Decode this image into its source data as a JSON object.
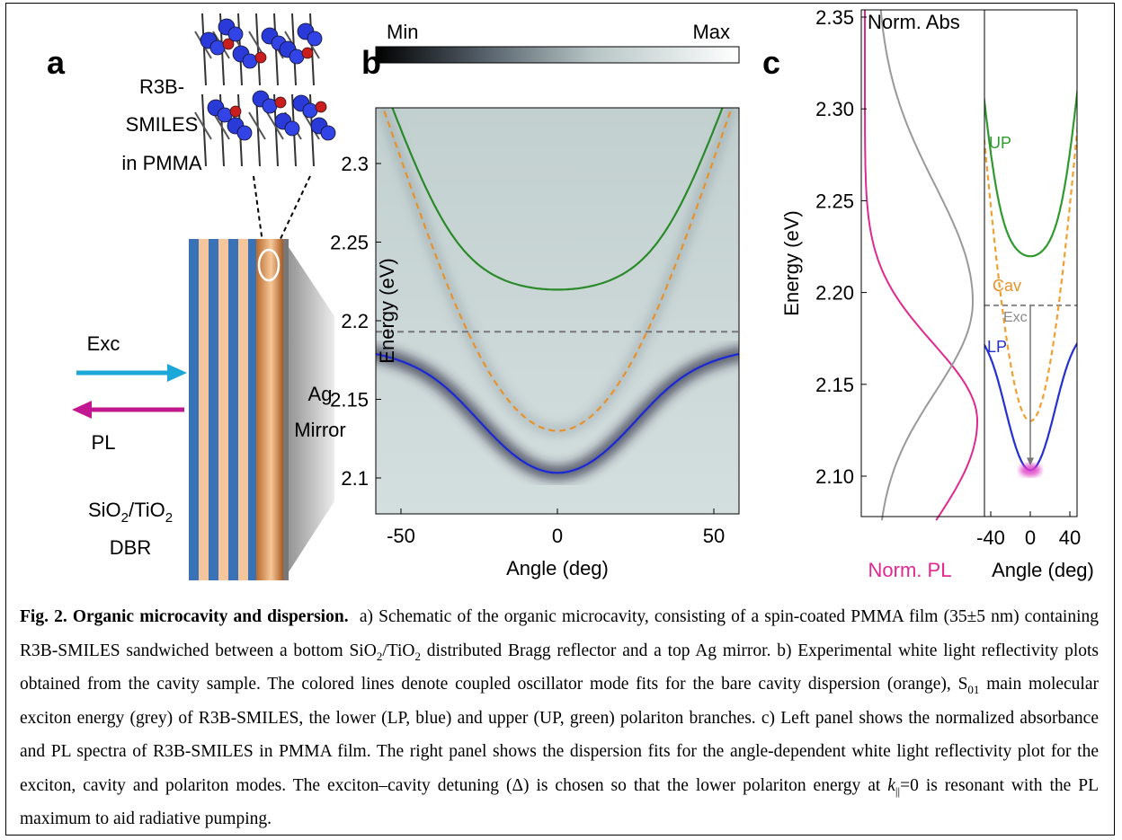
{
  "panel_a": {
    "label": "a",
    "sample": [
      "R3B-",
      "SMILES",
      "in PMMA"
    ],
    "excitation": "Exc",
    "emission": "PL",
    "dbr_material": [
      "SiO",
      "2",
      "/TiO",
      "2"
    ],
    "dbr": "DBR",
    "mirror": [
      "Ag",
      "Mirror"
    ]
  },
  "panel_b": {
    "label": "b",
    "colorbar": [
      "Min",
      "Max"
    ],
    "y_axis_title": "Energy (eV)",
    "x_axis_title": "Angle (deg)",
    "yticks": [
      "2.1",
      "2.15",
      "2.2",
      "2.25",
      "2.3"
    ],
    "xticks": [
      "-50",
      "0",
      "50"
    ]
  },
  "panel_c": {
    "label": "c",
    "absorbance_title": "Norm. Abs",
    "pl_title": "Norm. PL",
    "y_axis_title": "Energy (eV)",
    "x_axis_title": "Angle (deg)",
    "yticks": [
      "2.10",
      "2.15",
      "2.20",
      "2.25",
      "2.30",
      "2.35"
    ],
    "xticks": [
      "-40",
      "0",
      "40"
    ],
    "mode_labels": {
      "up": "UP",
      "cav": "Cav",
      "exc": "Exc",
      "lp": "LP"
    }
  },
  "caption": {
    "title": "Fig. 2. Organic microcavity and dispersion.",
    "body": [
      "a) Schematic of the organic microcavity, consisting of a spin-coated PMMA film (35±5 nm) containing R3B-SMILES sandwiched between a bottom SiO",
      "2",
      "/TiO",
      "2",
      " distributed Bragg reflector and a top Ag mirror. b) Experimental white light reflectivity plots obtained from the cavity sample. The colored lines denote coupled oscillator mode fits for the bare cavity dispersion (orange), S",
      "01",
      " main molecular exciton energy (grey) of R3B-SMILES, the lower (LP, blue) and upper (UP, green) polariton branches. c) Left panel shows the normalized absorbance and PL spectra of R3B-SMILES in PMMA film. The right panel shows the dispersion fits for the angle-dependent white light reflectivity plot for the exciton, cavity and polariton modes. The exciton–cavity detuning (Δ) is chosen so that the lower polariton energy at ",
      "k",
      "||",
      "=0 is resonant with the PL maximum to aid radiative pumping."
    ]
  }
}
